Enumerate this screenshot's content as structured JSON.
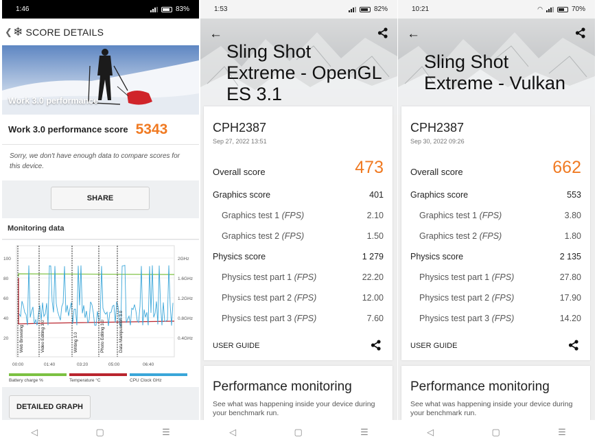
{
  "phone1": {
    "status": {
      "time": "1:46",
      "battery": "83%"
    },
    "header": {
      "title": "SCORE DETAILS"
    },
    "hero": {
      "caption": "Work 3.0 performance"
    },
    "score": {
      "label": "Work 3.0 performance score",
      "value": "5343"
    },
    "note": "Sorry, we don't have enough data to compare scores for this device.",
    "share_label": "SHARE",
    "monitoring": {
      "title": "Monitoring data",
      "y_left_ticks": [
        "100",
        "80",
        "60",
        "40",
        "20"
      ],
      "y_right_ticks": [
        "2GHz",
        "1.6GHz",
        "1.2GHz",
        "0.8GHz",
        "0.4GHz"
      ],
      "x_ticks": [
        "00:00",
        "01:40",
        "03:20",
        "05:00",
        "06:40"
      ],
      "sections": [
        "Web Browsing",
        "Video Editing 3.0",
        "Writing 3.0",
        "Photo Editing 3.0",
        "Data Manipulation 3.0"
      ],
      "legend": [
        {
          "label": "Battery charge %",
          "color": "#7cc142"
        },
        {
          "label": "Temperature °C",
          "color": "#b9252e"
        },
        {
          "label": "CPU Clock GHz",
          "color": "#3aa6d9"
        }
      ]
    },
    "detailed_label": "DETAILED GRAPH"
  },
  "phone2": {
    "status": {
      "time": "1:53",
      "battery": "82%"
    },
    "title_lines": [
      "Sling Shot",
      "Extreme - OpenGL",
      "ES 3.1"
    ],
    "device": "CPH2387",
    "date": "Sep 27, 2022 13:51",
    "overall": {
      "label": "Overall score",
      "value": "473"
    },
    "rows": [
      {
        "label": "Graphics score",
        "unit": "",
        "value": "401",
        "sub": false
      },
      {
        "label": "Graphics test 1",
        "unit": "(FPS)",
        "value": "2.10",
        "sub": true
      },
      {
        "label": "Graphics test 2",
        "unit": "(FPS)",
        "value": "1.50",
        "sub": true
      },
      {
        "label": "Physics score",
        "unit": "",
        "value": "1 279",
        "sub": false
      },
      {
        "label": "Physics test part 1",
        "unit": "(FPS)",
        "value": "22.20",
        "sub": true
      },
      {
        "label": "Physics test part 2",
        "unit": "(FPS)",
        "value": "12.00",
        "sub": true
      },
      {
        "label": "Physics test part 3",
        "unit": "(FPS)",
        "value": "7.60",
        "sub": true
      }
    ],
    "user_guide": "USER GUIDE",
    "perf_title": "Performance monitoring",
    "perf_desc": "See what was happening inside your device during your benchmark run."
  },
  "phone3": {
    "status": {
      "time": "10:21",
      "battery": "70%"
    },
    "title_lines": [
      "Sling Shot",
      "Extreme - Vulkan"
    ],
    "device": "CPH2387",
    "date": "Sep 30, 2022 09:26",
    "overall": {
      "label": "Overall score",
      "value": "662"
    },
    "rows": [
      {
        "label": "Graphics score",
        "unit": "",
        "value": "553",
        "sub": false
      },
      {
        "label": "Graphics test 1",
        "unit": "(FPS)",
        "value": "3.80",
        "sub": true
      },
      {
        "label": "Graphics test 2",
        "unit": "(FPS)",
        "value": "1.80",
        "sub": true
      },
      {
        "label": "Physics score",
        "unit": "",
        "value": "2 135",
        "sub": false
      },
      {
        "label": "Physics test part 1",
        "unit": "(FPS)",
        "value": "27.80",
        "sub": true
      },
      {
        "label": "Physics test part 2",
        "unit": "(FPS)",
        "value": "17.90",
        "sub": true
      },
      {
        "label": "Physics test part 3",
        "unit": "(FPS)",
        "value": "14.20",
        "sub": true
      }
    ],
    "user_guide": "USER GUIDE",
    "perf_title": "Performance monitoring",
    "perf_desc": "See what was happening inside your device during your benchmark run."
  },
  "navbar": {
    "back_icon": "◁",
    "home_icon": "▢",
    "menu_icon": "☰"
  }
}
